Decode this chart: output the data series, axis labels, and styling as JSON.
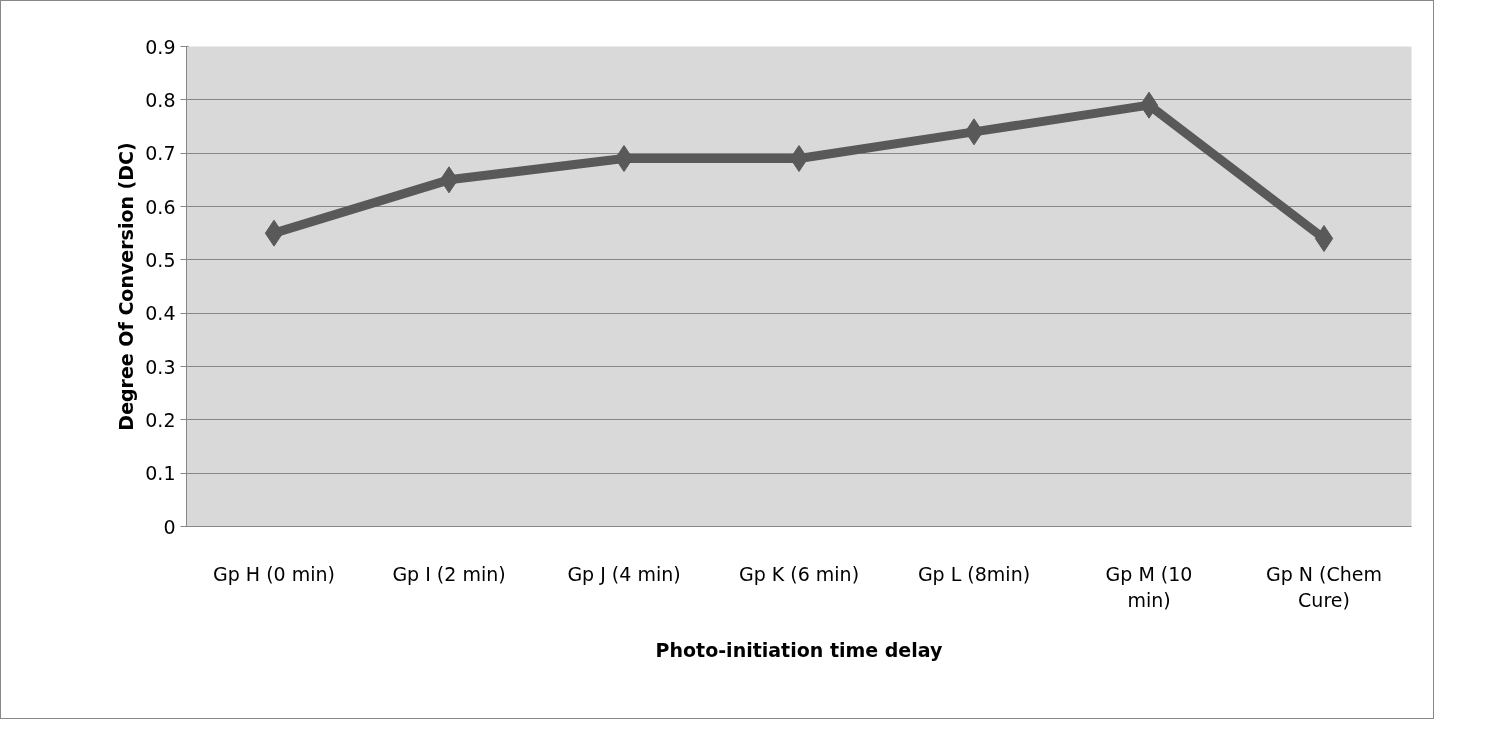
{
  "chart_data": {
    "type": "line",
    "xlabel": "Photo-initiation time delay",
    "ylabel": "Degree Of Conversion (DC)",
    "categories": [
      "Gp H (0 min)",
      "Gp I (2 min)",
      "Gp J (4 min)",
      "Gp K (6 min)",
      "Gp L (8min)",
      "Gp M (10 min)",
      "Gp N (Chem Cure)"
    ],
    "series": [
      {
        "color": "#595959",
        "values": [
          0.55,
          0.65,
          0.69,
          0.69,
          0.74,
          0.79,
          0.54
        ]
      }
    ],
    "ylim": [
      0,
      0.9
    ],
    "yticks": [
      0,
      0.1,
      0.2,
      0.3,
      0.4,
      0.5,
      0.6,
      0.7,
      0.8,
      0.9
    ],
    "grid": "y",
    "marker": "diamond",
    "line_style": "solid"
  }
}
